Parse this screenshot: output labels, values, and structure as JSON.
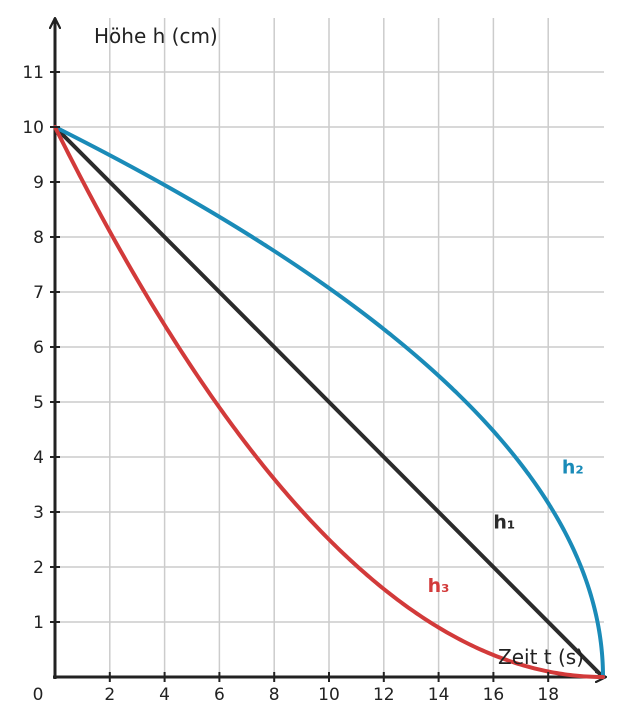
{
  "chart_data": {
    "type": "line",
    "xlabel": "Zeit t (s)",
    "ylabel": "Höhe h (cm)",
    "origin_label": "0",
    "xlim": [
      0,
      20
    ],
    "ylim": [
      0,
      11
    ],
    "x_ticks": [
      2,
      4,
      6,
      8,
      10,
      12,
      14,
      16,
      18
    ],
    "y_ticks": [
      1,
      2,
      3,
      4,
      5,
      6,
      7,
      8,
      9,
      10,
      11
    ],
    "grid": true,
    "series": [
      {
        "name": "h₁",
        "color": "#2b2b2b",
        "x": [
          0,
          20
        ],
        "y": [
          10,
          0
        ]
      },
      {
        "name": "h₂",
        "color": "#1a8bb8",
        "x": [
          0,
          2,
          4,
          6,
          8,
          10,
          12,
          14,
          16,
          18,
          19,
          20
        ],
        "y": [
          10,
          9.49,
          8.94,
          8.37,
          7.75,
          7.07,
          6.32,
          5.48,
          4.47,
          3.16,
          2.24,
          0
        ]
      },
      {
        "name": "h₃",
        "color": "#d23a3a",
        "x": [
          0,
          2,
          4,
          6,
          8,
          10,
          12,
          14,
          16,
          18,
          20
        ],
        "y": [
          10,
          8.1,
          6.4,
          4.9,
          3.6,
          2.5,
          1.6,
          0.9,
          0.4,
          0.1,
          0
        ]
      }
    ],
    "series_labels": [
      {
        "series": 0,
        "x": 16.0,
        "y": 2.7
      },
      {
        "series": 1,
        "x": 18.5,
        "y": 3.7
      },
      {
        "series": 2,
        "x": 13.6,
        "y": 1.55
      }
    ]
  }
}
